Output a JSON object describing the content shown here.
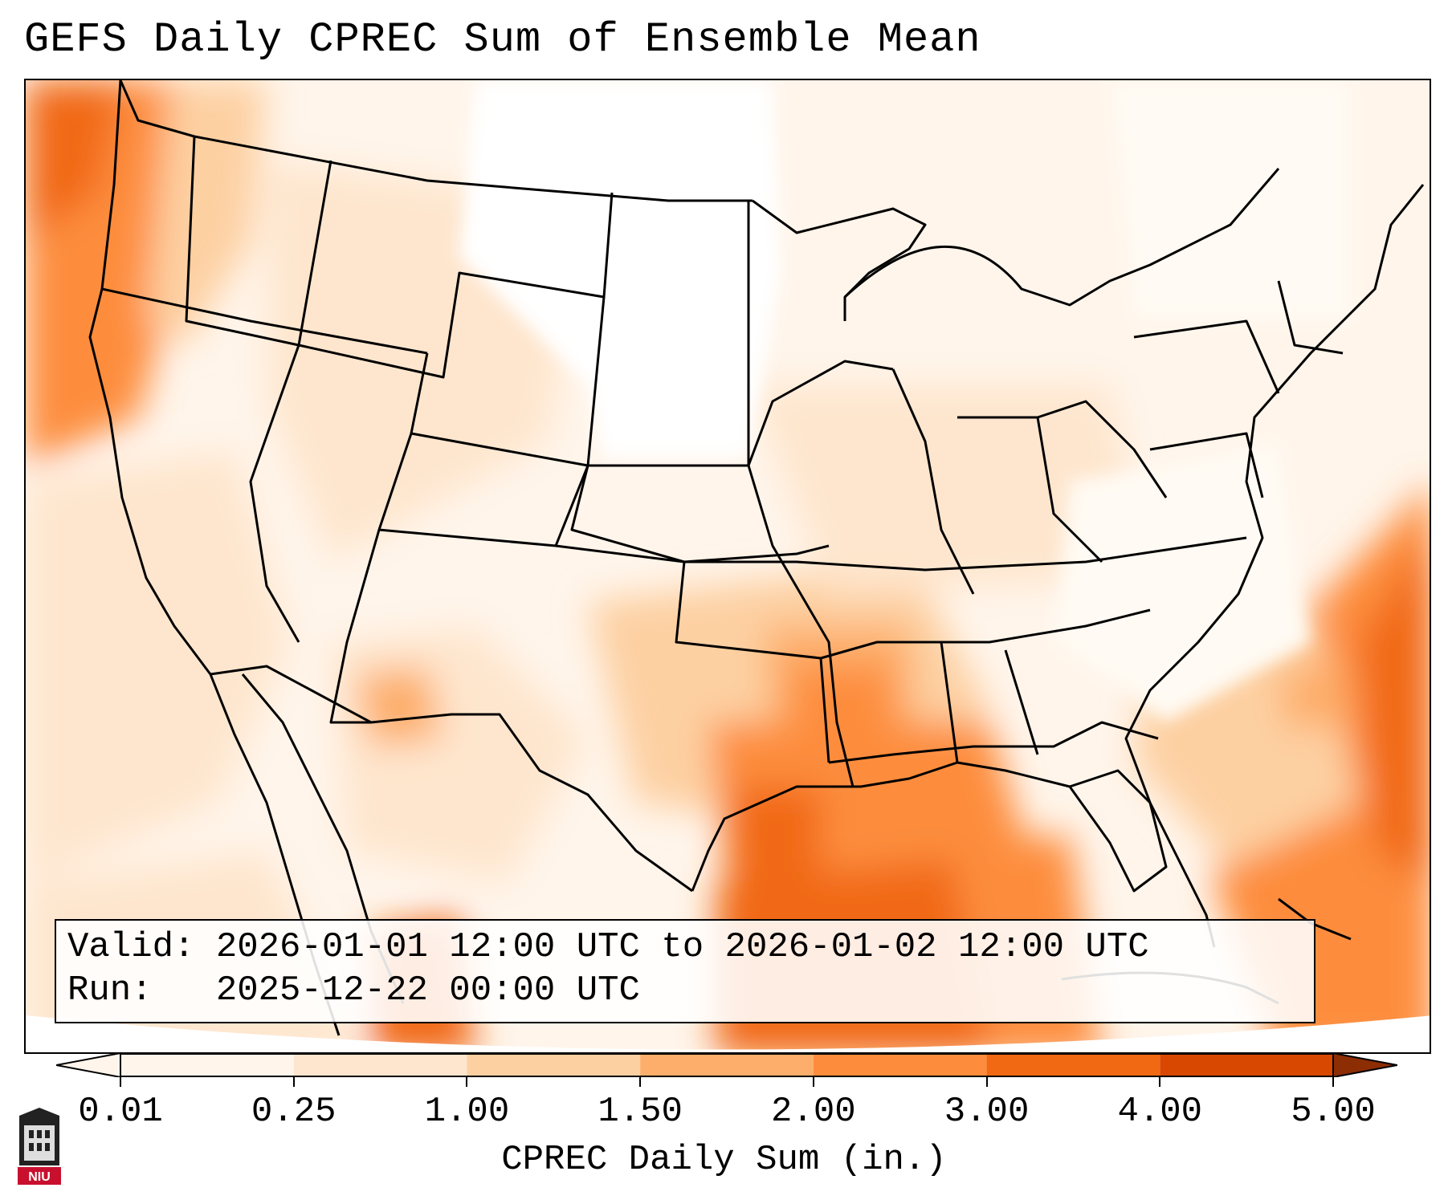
{
  "title": "GEFS Daily CPREC Sum of Ensemble Mean",
  "valid_label": "Valid:",
  "valid_text": "2026-01-01 12:00 UTC to 2026-01-02 12:00 UTC",
  "run_label": "Run:",
  "run_text": "2025-12-22 00:00 UTC",
  "colorbar": {
    "label": "CPREC Daily Sum (in.)",
    "ticks": [
      "0.01",
      "0.25",
      "1.00",
      "1.50",
      "2.00",
      "3.00",
      "4.00",
      "5.00"
    ],
    "colors": [
      "#fff5eb",
      "#fee6ce",
      "#fdd0a2",
      "#fdae6b",
      "#fd8d3c",
      "#f16913",
      "#d94801",
      "#8c2d04"
    ],
    "extend": "both"
  },
  "logo_text": "NIU",
  "colors": {
    "low": "#fff5eb",
    "light": "#fee6ce",
    "moderate": "#fdd0a2",
    "mid": "#fdae6b",
    "high": "#fd8d3c",
    "very_high": "#f16913",
    "extreme": "#d94801"
  }
}
